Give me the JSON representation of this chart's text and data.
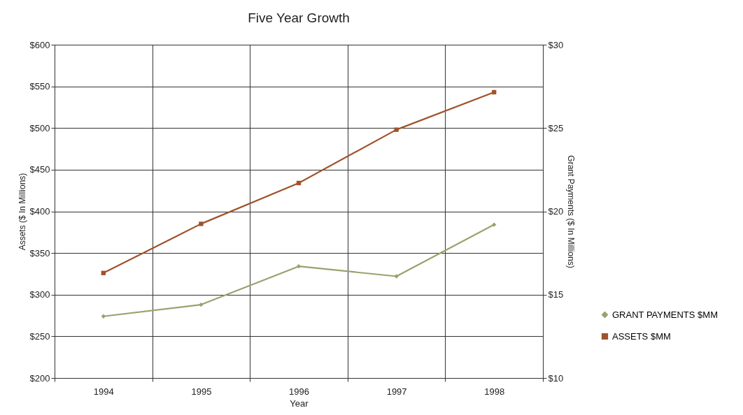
{
  "chart_data": {
    "type": "line",
    "title": "Five Year Growth",
    "xlabel": "Year",
    "ylabel": "Assets ($ In Millions)",
    "y2label": "Grant Payments ($ In Millions)",
    "categories": [
      "1994",
      "1995",
      "1996",
      "1997",
      "1998"
    ],
    "series": [
      {
        "name": "GRANT PAYMENTS $MM",
        "color": "#9da06d",
        "axis": "y2",
        "marker": "diamond",
        "values": [
          13.7,
          14.4,
          16.7,
          16.1,
          19.2
        ]
      },
      {
        "name": "ASSETS $MM",
        "color": "#a0522d",
        "axis": "y",
        "marker": "square",
        "values": [
          326,
          385,
          434,
          498,
          543
        ]
      }
    ],
    "ylim": [
      200,
      600
    ],
    "yticks": [
      {
        "value": 200,
        "label": "$200"
      },
      {
        "value": 250,
        "label": "$250"
      },
      {
        "value": 300,
        "label": "$300"
      },
      {
        "value": 350,
        "label": "$350"
      },
      {
        "value": 400,
        "label": "$400"
      },
      {
        "value": 450,
        "label": "$450"
      },
      {
        "value": 500,
        "label": "$500"
      },
      {
        "value": 550,
        "label": "$550"
      },
      {
        "value": 600,
        "label": "$600"
      }
    ],
    "y2lim": [
      10,
      30
    ],
    "y2ticks": [
      {
        "value": 10,
        "label": "$10"
      },
      {
        "value": 15,
        "label": "$15"
      },
      {
        "value": 20,
        "label": "$20"
      },
      {
        "value": 25,
        "label": "$25"
      },
      {
        "value": 30,
        "label": "$30"
      }
    ],
    "grid": true,
    "legend": "right",
    "line_style": "solid"
  }
}
